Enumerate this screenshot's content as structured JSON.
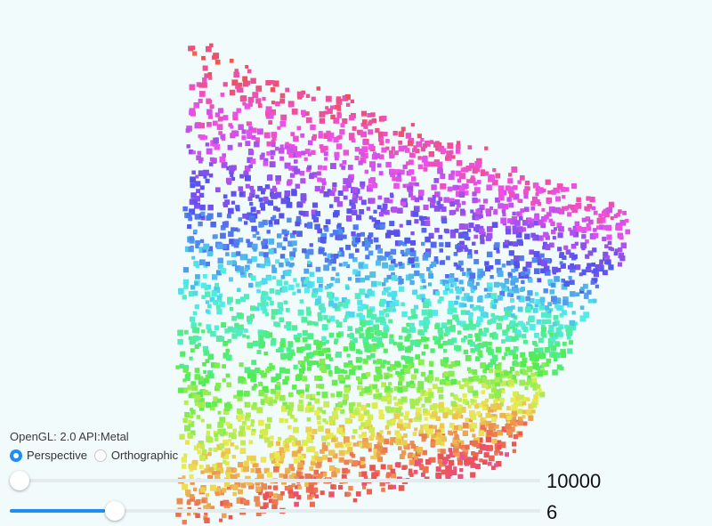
{
  "info": {
    "text": "OpenGL: 2.0 API:Metal"
  },
  "projection": {
    "options": [
      {
        "label": "Perspective",
        "selected": true
      },
      {
        "label": "Orthographic",
        "selected": false
      }
    ]
  },
  "sliders": [
    {
      "name": "count",
      "value_label": "10000",
      "fraction": 0.0
    },
    {
      "name": "size",
      "value_label": "6",
      "fraction": 0.18
    }
  ],
  "colors": {
    "accent": "#1e8ef4",
    "background": "#f2fbfc"
  },
  "icons": [
    "radio-checked-icon",
    "radio-unchecked-icon",
    "slider-thumb"
  ]
}
